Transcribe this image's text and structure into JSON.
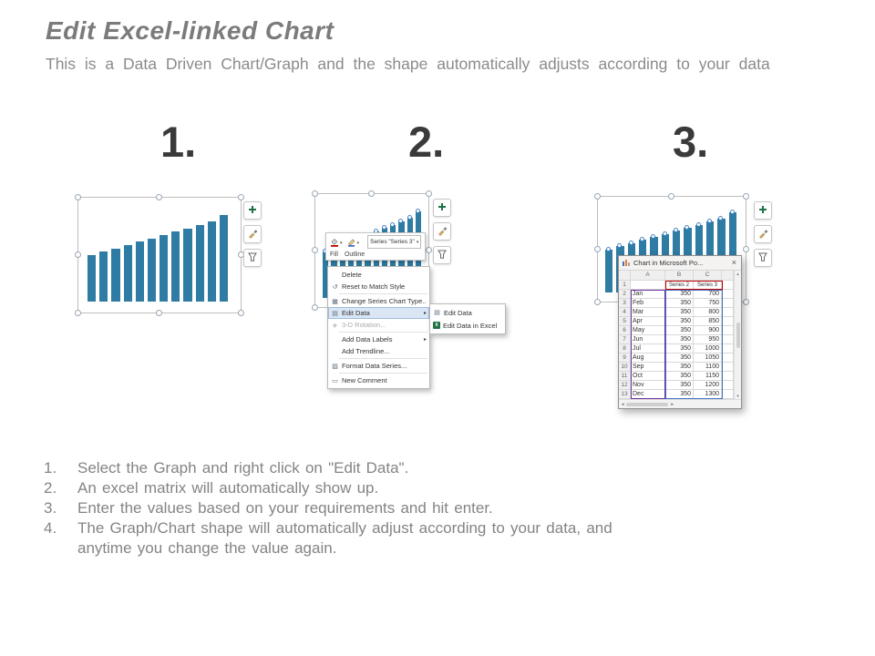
{
  "slide": {
    "title": "Edit Excel-linked Chart",
    "subtitle": "This is a Data Driven Chart/Graph and the shape automatically adjusts according to your data"
  },
  "steps": [
    "1.",
    "2.",
    "3."
  ],
  "chart_data": {
    "type": "bar",
    "categories": [
      "Jan",
      "Feb",
      "Mar",
      "Apr",
      "May",
      "Jun",
      "Jul",
      "Aug",
      "Sep",
      "Oct",
      "Nov",
      "Dec"
    ],
    "series": [
      {
        "name": "Series 2",
        "values": [
          350,
          350,
          350,
          350,
          350,
          350,
          350,
          350,
          350,
          350,
          350,
          350
        ]
      },
      {
        "name": "Series 3",
        "values": [
          700,
          750,
          800,
          850,
          900,
          950,
          1000,
          1050,
          1100,
          1150,
          1200,
          1300
        ]
      }
    ],
    "bar_color": "#2e7ba3",
    "legend": "off",
    "axes": "hidden"
  },
  "chart_side_buttons": [
    {
      "name": "chart-elements",
      "icon": "plus-icon"
    },
    {
      "name": "chart-styles",
      "icon": "paintbrush-icon"
    },
    {
      "name": "chart-filters",
      "icon": "funnel-icon"
    }
  ],
  "mini_toolbar": {
    "fill_label": "Fill",
    "outline_label": "Outline",
    "series_selector": "Series \"Series 3\"",
    "icons": [
      "paint-bucket-icon",
      "outline-pen-icon"
    ]
  },
  "context_menu": {
    "items": [
      {
        "label": "Delete",
        "icon": "",
        "icon_name": "menu-item-icon"
      },
      {
        "label": "Reset to Match Style",
        "icon": "↺",
        "icon_name": "reset-icon"
      },
      {
        "sep": true
      },
      {
        "label": "Change Series Chart Type...",
        "icon": "▦",
        "icon_name": "chart-type-icon"
      },
      {
        "label": "Edit Data",
        "icon": "▤",
        "icon_name": "table-icon",
        "submenu": true,
        "highlighted": true
      },
      {
        "label": "3-D Rotation...",
        "icon": "◈",
        "icon_name": "rotation-icon",
        "disabled": true
      },
      {
        "sep": true
      },
      {
        "label": "Add Data Labels",
        "icon": "",
        "icon_name": "menu-item-icon",
        "submenu": true
      },
      {
        "label": "Add Trendline...",
        "icon": "",
        "icon_name": "menu-item-icon"
      },
      {
        "sep": true
      },
      {
        "label": "Format Data Series...",
        "icon": "▨",
        "icon_name": "format-icon"
      },
      {
        "sep": true
      },
      {
        "label": "New Comment",
        "icon": "▭",
        "icon_name": "comment-icon"
      }
    ],
    "submenu": [
      {
        "label": "Edit Data",
        "icon": "▤",
        "icon_name": "table-icon"
      },
      {
        "label": "Edit Data in Excel",
        "icon": "X",
        "icon_class": "excel",
        "icon_name": "excel-icon"
      }
    ]
  },
  "excel_window": {
    "title": "Chart in Microsoft Po...",
    "close": "×",
    "column_headers": [
      "A",
      "B",
      "C"
    ],
    "rows": [
      {
        "num": "1",
        "a": "",
        "b": "Series 2",
        "c": "Series 3"
      },
      {
        "num": "2",
        "a": "Jan",
        "b": "350",
        "c": "700"
      },
      {
        "num": "3",
        "a": "Feb",
        "b": "350",
        "c": "750"
      },
      {
        "num": "4",
        "a": "Mar",
        "b": "350",
        "c": "800"
      },
      {
        "num": "5",
        "a": "Apr",
        "b": "350",
        "c": "850"
      },
      {
        "num": "6",
        "a": "May",
        "b": "350",
        "c": "900"
      },
      {
        "num": "7",
        "a": "Jun",
        "b": "350",
        "c": "950"
      },
      {
        "num": "8",
        "a": "Jul",
        "b": "350",
        "c": "1000"
      },
      {
        "num": "9",
        "a": "Aug",
        "b": "350",
        "c": "1050"
      },
      {
        "num": "10",
        "a": "Sep",
        "b": "350",
        "c": "1100"
      },
      {
        "num": "11",
        "a": "Oct",
        "b": "350",
        "c": "1150"
      },
      {
        "num": "12",
        "a": "Nov",
        "b": "350",
        "c": "1200"
      },
      {
        "num": "13",
        "a": "Dec",
        "b": "350",
        "c": "1300"
      }
    ]
  },
  "instructions": [
    "Select the Graph and right click on \"Edit Data\".",
    "An excel matrix will automatically show up.",
    "Enter the values based on your requirements and hit enter.",
    "The Graph/Chart shape will automatically adjust according to your data, and anytime you change the value again."
  ]
}
